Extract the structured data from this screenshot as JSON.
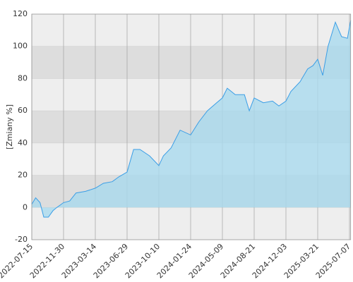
{
  "chart_data": {
    "type": "area",
    "y_label": "[Zmiany %]",
    "x": [
      "2022-07-15",
      "2022-08-01",
      "2022-08-20",
      "2022-09-05",
      "2022-09-25",
      "2022-10-15",
      "2022-11-01",
      "2022-11-30",
      "2022-12-20",
      "2023-01-10",
      "2023-02-10",
      "2023-03-14",
      "2023-04-10",
      "2023-05-10",
      "2023-06-01",
      "2023-06-29",
      "2023-07-20",
      "2023-08-10",
      "2023-09-10",
      "2023-10-10",
      "2023-10-25",
      "2023-11-20",
      "2023-12-20",
      "2024-01-24",
      "2024-02-20",
      "2024-03-20",
      "2024-04-20",
      "2024-05-09",
      "2024-05-25",
      "2024-06-20",
      "2024-07-20",
      "2024-08-05",
      "2024-08-21",
      "2024-09-20",
      "2024-10-20",
      "2024-11-10",
      "2024-12-03",
      "2024-12-20",
      "2025-01-20",
      "2025-02-15",
      "2025-03-05",
      "2025-03-21",
      "2025-04-07",
      "2025-04-25",
      "2025-05-20",
      "2025-06-10",
      "2025-06-30",
      "2025-07-07",
      "2025-07-11"
    ],
    "series": [
      {
        "color": "#3a9ee6",
        "fill": "#a9daee",
        "values": [
          2,
          6,
          3,
          -6,
          -6,
          -2,
          0,
          3,
          4,
          9,
          10,
          12,
          15,
          16,
          19,
          22,
          36,
          36,
          32,
          26,
          32,
          37,
          48,
          45,
          53,
          60,
          65,
          68,
          74,
          70,
          70,
          60,
          68,
          65,
          66,
          63,
          66,
          72,
          78,
          86,
          88,
          92,
          82,
          100,
          115,
          106,
          105,
          112,
          116
        ]
      }
    ],
    "xlim": [
      "2022-07-15",
      "2025-07-11"
    ],
    "xticks": [
      "2022-07-15",
      "2022-11-30",
      "2023-03-14",
      "2023-06-29",
      "2023-10-10",
      "2024-01-24",
      "2024-05-09",
      "2024-08-21",
      "2024-12-03",
      "2025-03-21",
      "2025-07-07"
    ],
    "ylim": [
      -20,
      120
    ],
    "yticks": [
      -20,
      0,
      20,
      40,
      60,
      80,
      100,
      120
    ],
    "band_colors": [
      "#eeeeee",
      "#dddddd"
    ],
    "grid": true
  }
}
